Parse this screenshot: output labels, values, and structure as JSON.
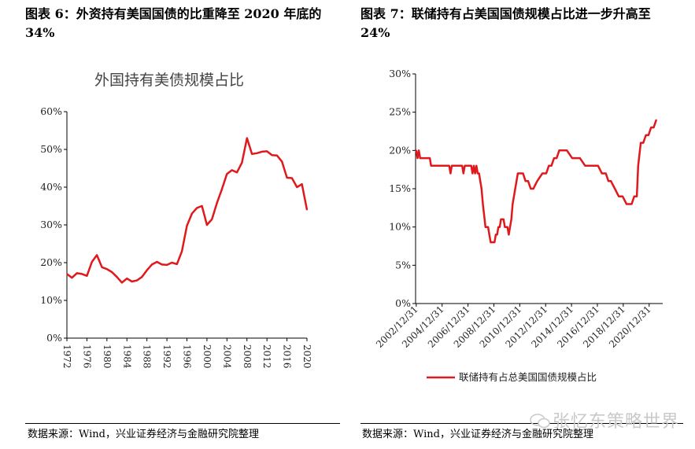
{
  "figures": [
    {
      "title": "图表 6：外资持有美国国债的比重降至 2020 年底的 34%",
      "source": "数据来源：Wind，兴业证券经济与金融研究院整理"
    },
    {
      "title": "图表 7：联储持有占美国国债规模占比进一步升高至 24%",
      "source": "数据来源：Wind，兴业证券经济与金融研究院整理"
    }
  ],
  "watermark": {
    "text": "张忆东策略世界",
    "icon": "wechat-bubbles-icon"
  },
  "chart_data": [
    {
      "type": "line",
      "title": "外国持有美债规模占比",
      "xlabel": "",
      "ylabel": "",
      "x_ticks": [
        "1972",
        "1976",
        "1980",
        "1984",
        "1988",
        "1992",
        "1996",
        "2000",
        "2004",
        "2008",
        "2012",
        "2016",
        "2020"
      ],
      "y_ticks": [
        "0%",
        "10%",
        "20%",
        "30%",
        "40%",
        "50%",
        "60%"
      ],
      "xlim": [
        1972,
        2020
      ],
      "ylim": [
        0,
        60
      ],
      "grid": false,
      "legend": "none",
      "color": "#e0191d",
      "series": [
        {
          "x": [
            1972,
            1973,
            1974,
            1975,
            1976,
            1977,
            1978,
            1979,
            1980,
            1981,
            1982,
            1983,
            1984,
            1985,
            1986,
            1987,
            1988,
            1989,
            1990,
            1991,
            1992,
            1993,
            1994,
            1995,
            1996,
            1997,
            1998,
            1999,
            2000,
            2001,
            2002,
            2003,
            2004,
            2005,
            2006,
            2007,
            2008,
            2009,
            2010,
            2011,
            2012,
            2013,
            2014,
            2015,
            2016,
            2017,
            2018,
            2019,
            2020
          ],
          "values": [
            17,
            16,
            17.2,
            17,
            16.5,
            20.2,
            22,
            18.8,
            18.3,
            17.5,
            16.2,
            14.7,
            15.8,
            15,
            15.3,
            16.2,
            18,
            19.5,
            20.2,
            19.5,
            19.4,
            20,
            19.6,
            23,
            29.8,
            33,
            34.5,
            35,
            30,
            31.5,
            35.8,
            39.5,
            43.5,
            44.5,
            43.9,
            46.5,
            53,
            48.8,
            49,
            49.4,
            49.5,
            48.5,
            48.4,
            46.8,
            42.5,
            42.4,
            40,
            40.8,
            34
          ]
        }
      ]
    },
    {
      "type": "line",
      "title": "",
      "xlabel": "",
      "ylabel": "",
      "x_ticks": [
        "2002/12/31",
        "2004/12/31",
        "2006/12/31",
        "2008/12/31",
        "2010/12/31",
        "2012/12/31",
        "2014/12/31",
        "2016/12/31",
        "2018/12/31",
        "2020/12/31"
      ],
      "y_ticks": [
        "0%",
        "5%",
        "10%",
        "15%",
        "20%",
        "25%",
        "30%"
      ],
      "xlim": [
        2002.9,
        2022.0
      ],
      "ylim": [
        0,
        30
      ],
      "grid": false,
      "legend": "bottom",
      "color": "#e0191d",
      "series": [
        {
          "name": "联储持有占总美国国债规模占比",
          "x": [
            2002.95,
            2003.05,
            2003.15,
            2003.25,
            2003.4,
            2003.6,
            2004.0,
            2004.1,
            2004.5,
            2005.0,
            2005.5,
            2005.6,
            2005.7,
            2006.0,
            2006.5,
            2006.6,
            2006.7,
            2007.0,
            2007.2,
            2007.3,
            2007.4,
            2007.5,
            2007.6,
            2007.7,
            2007.8,
            2007.9,
            2008.0,
            2008.1,
            2008.3,
            2008.5,
            2008.6,
            2008.7,
            2008.9,
            2009.0,
            2009.1,
            2009.2,
            2009.3,
            2009.4,
            2009.5,
            2009.7,
            2009.8,
            2010.0,
            2010.1,
            2010.2,
            2010.3,
            2010.4,
            2010.6,
            2010.8,
            2011.0,
            2011.2,
            2011.4,
            2011.6,
            2011.8,
            2012.0,
            2012.3,
            2012.7,
            2013.0,
            2013.2,
            2013.4,
            2013.6,
            2013.8,
            2014.0,
            2014.3,
            2014.6,
            2015.0,
            2015.3,
            2015.6,
            2016.0,
            2016.4,
            2016.8,
            2017.0,
            2017.3,
            2017.6,
            2017.8,
            2018.0,
            2018.3,
            2018.6,
            2018.9,
            2019.2,
            2019.4,
            2019.6,
            2019.8,
            2020.0,
            2020.1,
            2020.3,
            2020.5,
            2020.7,
            2020.9,
            2021.1,
            2021.3,
            2021.5
          ],
          "values": [
            20,
            19,
            20,
            19,
            19,
            19,
            19,
            18,
            18,
            18,
            18,
            17,
            18,
            18,
            18,
            17,
            18,
            18,
            18,
            17,
            18,
            17,
            18,
            17,
            17,
            16,
            15,
            13,
            10,
            10,
            9,
            8,
            8,
            8,
            9,
            9,
            10,
            10,
            11,
            11,
            10,
            10,
            9,
            10,
            11,
            13,
            15,
            17,
            17,
            17,
            16,
            16,
            15,
            15,
            16,
            17,
            17,
            18,
            18,
            19,
            19,
            20,
            20,
            20,
            19,
            19,
            19,
            18,
            18,
            18,
            18,
            17,
            17,
            16,
            16,
            15,
            14,
            14,
            13,
            13,
            13,
            14,
            14,
            18,
            21,
            21,
            22,
            22,
            23,
            23,
            24
          ]
        }
      ]
    }
  ]
}
